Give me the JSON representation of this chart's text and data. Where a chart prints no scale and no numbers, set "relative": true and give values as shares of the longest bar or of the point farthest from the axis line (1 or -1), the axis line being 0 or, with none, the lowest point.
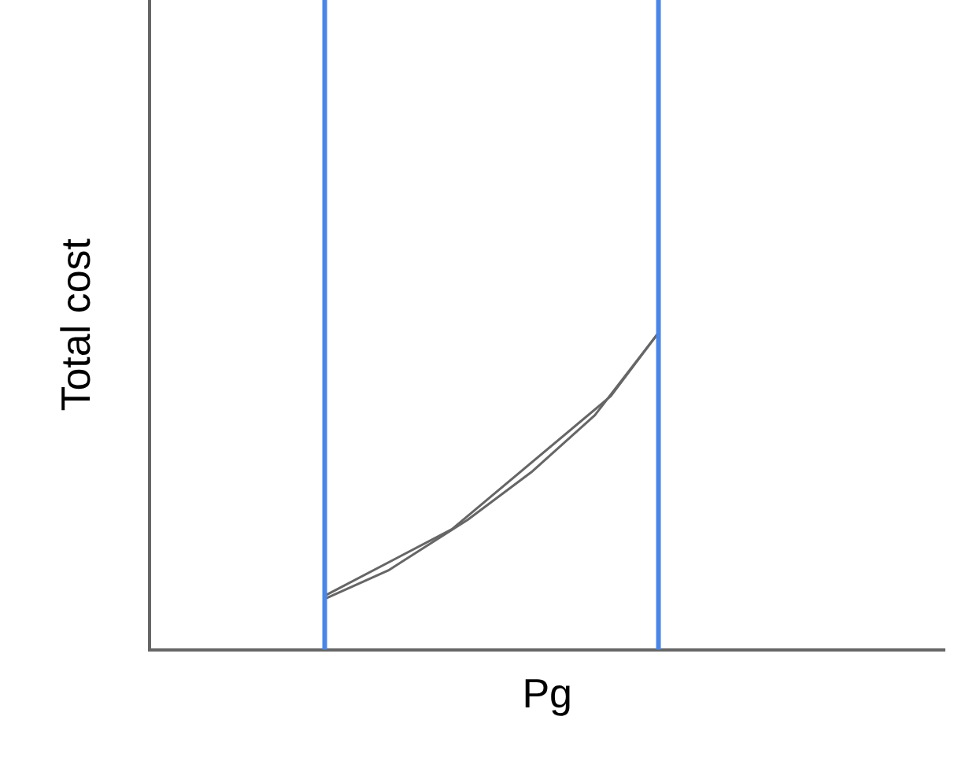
{
  "chart_data": {
    "type": "line",
    "xlabel": "Pg",
    "ylabel": "Total cost",
    "relative": true,
    "categories": [
      null,
      null,
      null,
      null,
      null,
      null,
      null,
      null,
      null,
      null,
      null,
      null,
      null,
      null,
      null,
      null,
      null,
      null,
      null,
      null,
      null,
      null,
      null,
      null,
      null,
      null,
      null,
      null,
      null,
      null,
      null,
      null,
      null,
      null,
      null,
      null,
      null,
      null,
      null,
      null,
      null,
      null,
      null,
      null,
      null,
      null,
      null,
      null,
      null,
      null,
      null
    ],
    "series": [
      {
        "color": "#666666",
        "values": [
          null,
          null,
          null,
          null,
          null,
          null,
          null,
          null,
          null,
          null,
          null,
          0.16,
          null,
          null,
          null,
          0.25,
          null,
          null,
          null,
          null,
          0.41,
          null,
          null,
          null,
          0.56,
          null,
          null,
          null,
          0.74,
          null,
          null,
          null,
          1,
          null,
          null,
          null,
          null,
          null,
          null,
          null,
          null,
          null,
          null,
          null,
          null,
          null,
          null,
          null,
          null,
          null,
          null
        ]
      },
      {
        "color": "#666666",
        "values": [
          null,
          null,
          null,
          null,
          null,
          null,
          null,
          null,
          null,
          null,
          null,
          0.17,
          null,
          null,
          null,
          null,
          null,
          null,
          null,
          0.38,
          null,
          null,
          null,
          null,
          null,
          null,
          null,
          null,
          null,
          0.8,
          null,
          null,
          1,
          null,
          null,
          null,
          null,
          null,
          null,
          null,
          null,
          null,
          null,
          null,
          null,
          null,
          null,
          null,
          null,
          null,
          null
        ]
      }
    ],
    "grid": false,
    "legend": false,
    "marker": "none",
    "line_style": "solid"
  }
}
